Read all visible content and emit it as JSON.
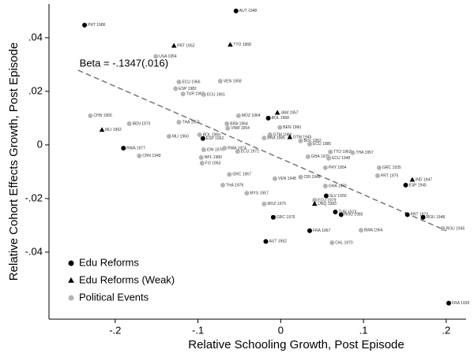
{
  "chart_data": {
    "type": "scatter",
    "xlabel": "Relative Schooling Growth, Post Episode",
    "ylabel": "Relative Cohort Effects Growth, Post Episode",
    "xlim": [
      -0.28,
      0.224
    ],
    "ylim": [
      -0.065,
      0.0526
    ],
    "xticks": [
      {
        "value": -0.2,
        "label": "-.2"
      },
      {
        "value": -0.1,
        "label": "-.1"
      },
      {
        "value": 0,
        "label": "0"
      },
      {
        "value": 0.1,
        "label": ".1"
      },
      {
        "value": 0.2,
        "label": ".2"
      }
    ],
    "yticks": [
      {
        "value": -0.04,
        "label": "-.04"
      },
      {
        "value": -0.02,
        "label": "-.02"
      },
      {
        "value": 0,
        "label": "0"
      },
      {
        "value": 0.02,
        "label": ".02"
      },
      {
        "value": 0.04,
        "label": ".04"
      }
    ],
    "legend_position": "lower left",
    "fit": {
      "label": "Beta = -.1347(.016)",
      "color": "#777777",
      "x": [
        -0.245,
        0.2
      ],
      "y": [
        0.0279,
        -0.032
      ]
    },
    "series": [
      {
        "name": "Edu Reforms",
        "marker": "circle",
        "color": "#000000",
        "x": [
          -0.054,
          -0.237,
          -0.094,
          -0.19,
          -0.015,
          0.151,
          0.153,
          0.172,
          0.055,
          0.066,
          -0.009,
          0.035,
          -0.018,
          0.203,
          0.073
        ],
        "y": [
          0.05,
          0.0447,
          0.0024,
          -0.0012,
          0.01,
          -0.015,
          -0.026,
          -0.027,
          -0.019,
          -0.025,
          -0.027,
          -0.032,
          -0.036,
          -0.059,
          -0.026
        ],
        "labels": [
          "AUT 1948",
          "PRT 1986",
          "ESP 1962",
          "RWA 1977",
          "BOL 1968",
          "ESP 1945",
          "PRT 1973",
          "ROU 1948",
          "SLV 1950",
          "TUR 1973",
          "GRC 1976",
          "FRA 1967",
          "AUT 1962",
          "FRA 1936",
          "ROU 1985"
        ]
      },
      {
        "name": "Edu Reforms (Weak)",
        "marker": "triangle",
        "color": "#000000",
        "x": [
          -0.129,
          -0.061,
          -0.216,
          -0.004,
          0.011,
          0.159,
          0.041
        ],
        "y": [
          0.037,
          0.0374,
          0.0056,
          0.012,
          0.0029,
          -0.013,
          -0.022
        ],
        "labels": [
          "PRT 1952",
          "TTO 1968",
          "MLI 1962",
          "JAM 1957",
          "GTM 1945",
          "IND 1947",
          "UNQ 1983"
        ]
      },
      {
        "name": "Political Events",
        "marker": "circle",
        "color": "#b4b4b4",
        "x": [
          -0.151,
          -0.123,
          -0.073,
          -0.127,
          -0.118,
          -0.093,
          -0.23,
          -0.183,
          -0.123,
          -0.051,
          -0.065,
          -0.064,
          -0.135,
          -0.098,
          -0.171,
          -0.093,
          -0.096,
          -0.095,
          -0.068,
          -0.001,
          -0.013,
          0.024,
          0.035,
          0.06,
          0.087,
          0.033,
          0.058,
          0.054,
          0.054,
          0.119,
          0.117,
          0.041,
          0.062,
          0.097,
          -0.07,
          -0.041,
          -0.02,
          0.196,
          -0.062,
          -0.052,
          -0.02,
          -0.007,
          0.024
        ],
        "y": [
          0.033,
          0.0235,
          0.0238,
          0.021,
          0.019,
          0.0188,
          0.0109,
          0.0079,
          0.0085,
          0.0109,
          0.0079,
          0.0062,
          0.0032,
          0.0038,
          -0.0041,
          -0.0018,
          -0.0047,
          -0.0068,
          -0.0012,
          0.0065,
          0.0038,
          0.0015,
          0.0003,
          -0.0026,
          -0.0029,
          -0.0044,
          -0.005,
          -0.0085,
          -0.0153,
          -0.0085,
          -0.0115,
          -0.0206,
          -0.0365,
          -0.0318,
          -0.015,
          -0.018,
          -0.022,
          -0.0312,
          -0.011,
          -0.0024,
          0.0026,
          -0.0126,
          -0.012
        ],
        "labels": [
          "USA 1954",
          "ECU 1966",
          "VEN 1958",
          "ESP 1982",
          "TUR 1960",
          "ECU 1961",
          "CHN 1966",
          "BEN 1973",
          "THA 1952",
          "MOZ 1964",
          "BRA 1964",
          "VNM 1954",
          "MLI 1960",
          "BOL 1966",
          "CHN 1949",
          "IDN 1976",
          "NPL 1980",
          "FJI 1963",
          "RWA 1974",
          "BEN 1960",
          "GTM 1966",
          "BOL 1952",
          "ECU 1985",
          "TTO 1962",
          "THA 1957",
          "GHA 1979",
          "ECU 1948",
          "PRY 1954",
          "GHA 1972",
          "GRC 1935",
          "PRT 1975",
          "ECU 1979",
          "CHL 1970",
          "BWA 1964",
          "THA 1976",
          "MYS 1957",
          "MOZ 1975",
          "ROU 1945",
          "GRC 1967",
          "ECU 1972",
          "BRA 1985",
          "VEN 1948",
          "CRI 1948"
        ]
      }
    ]
  }
}
